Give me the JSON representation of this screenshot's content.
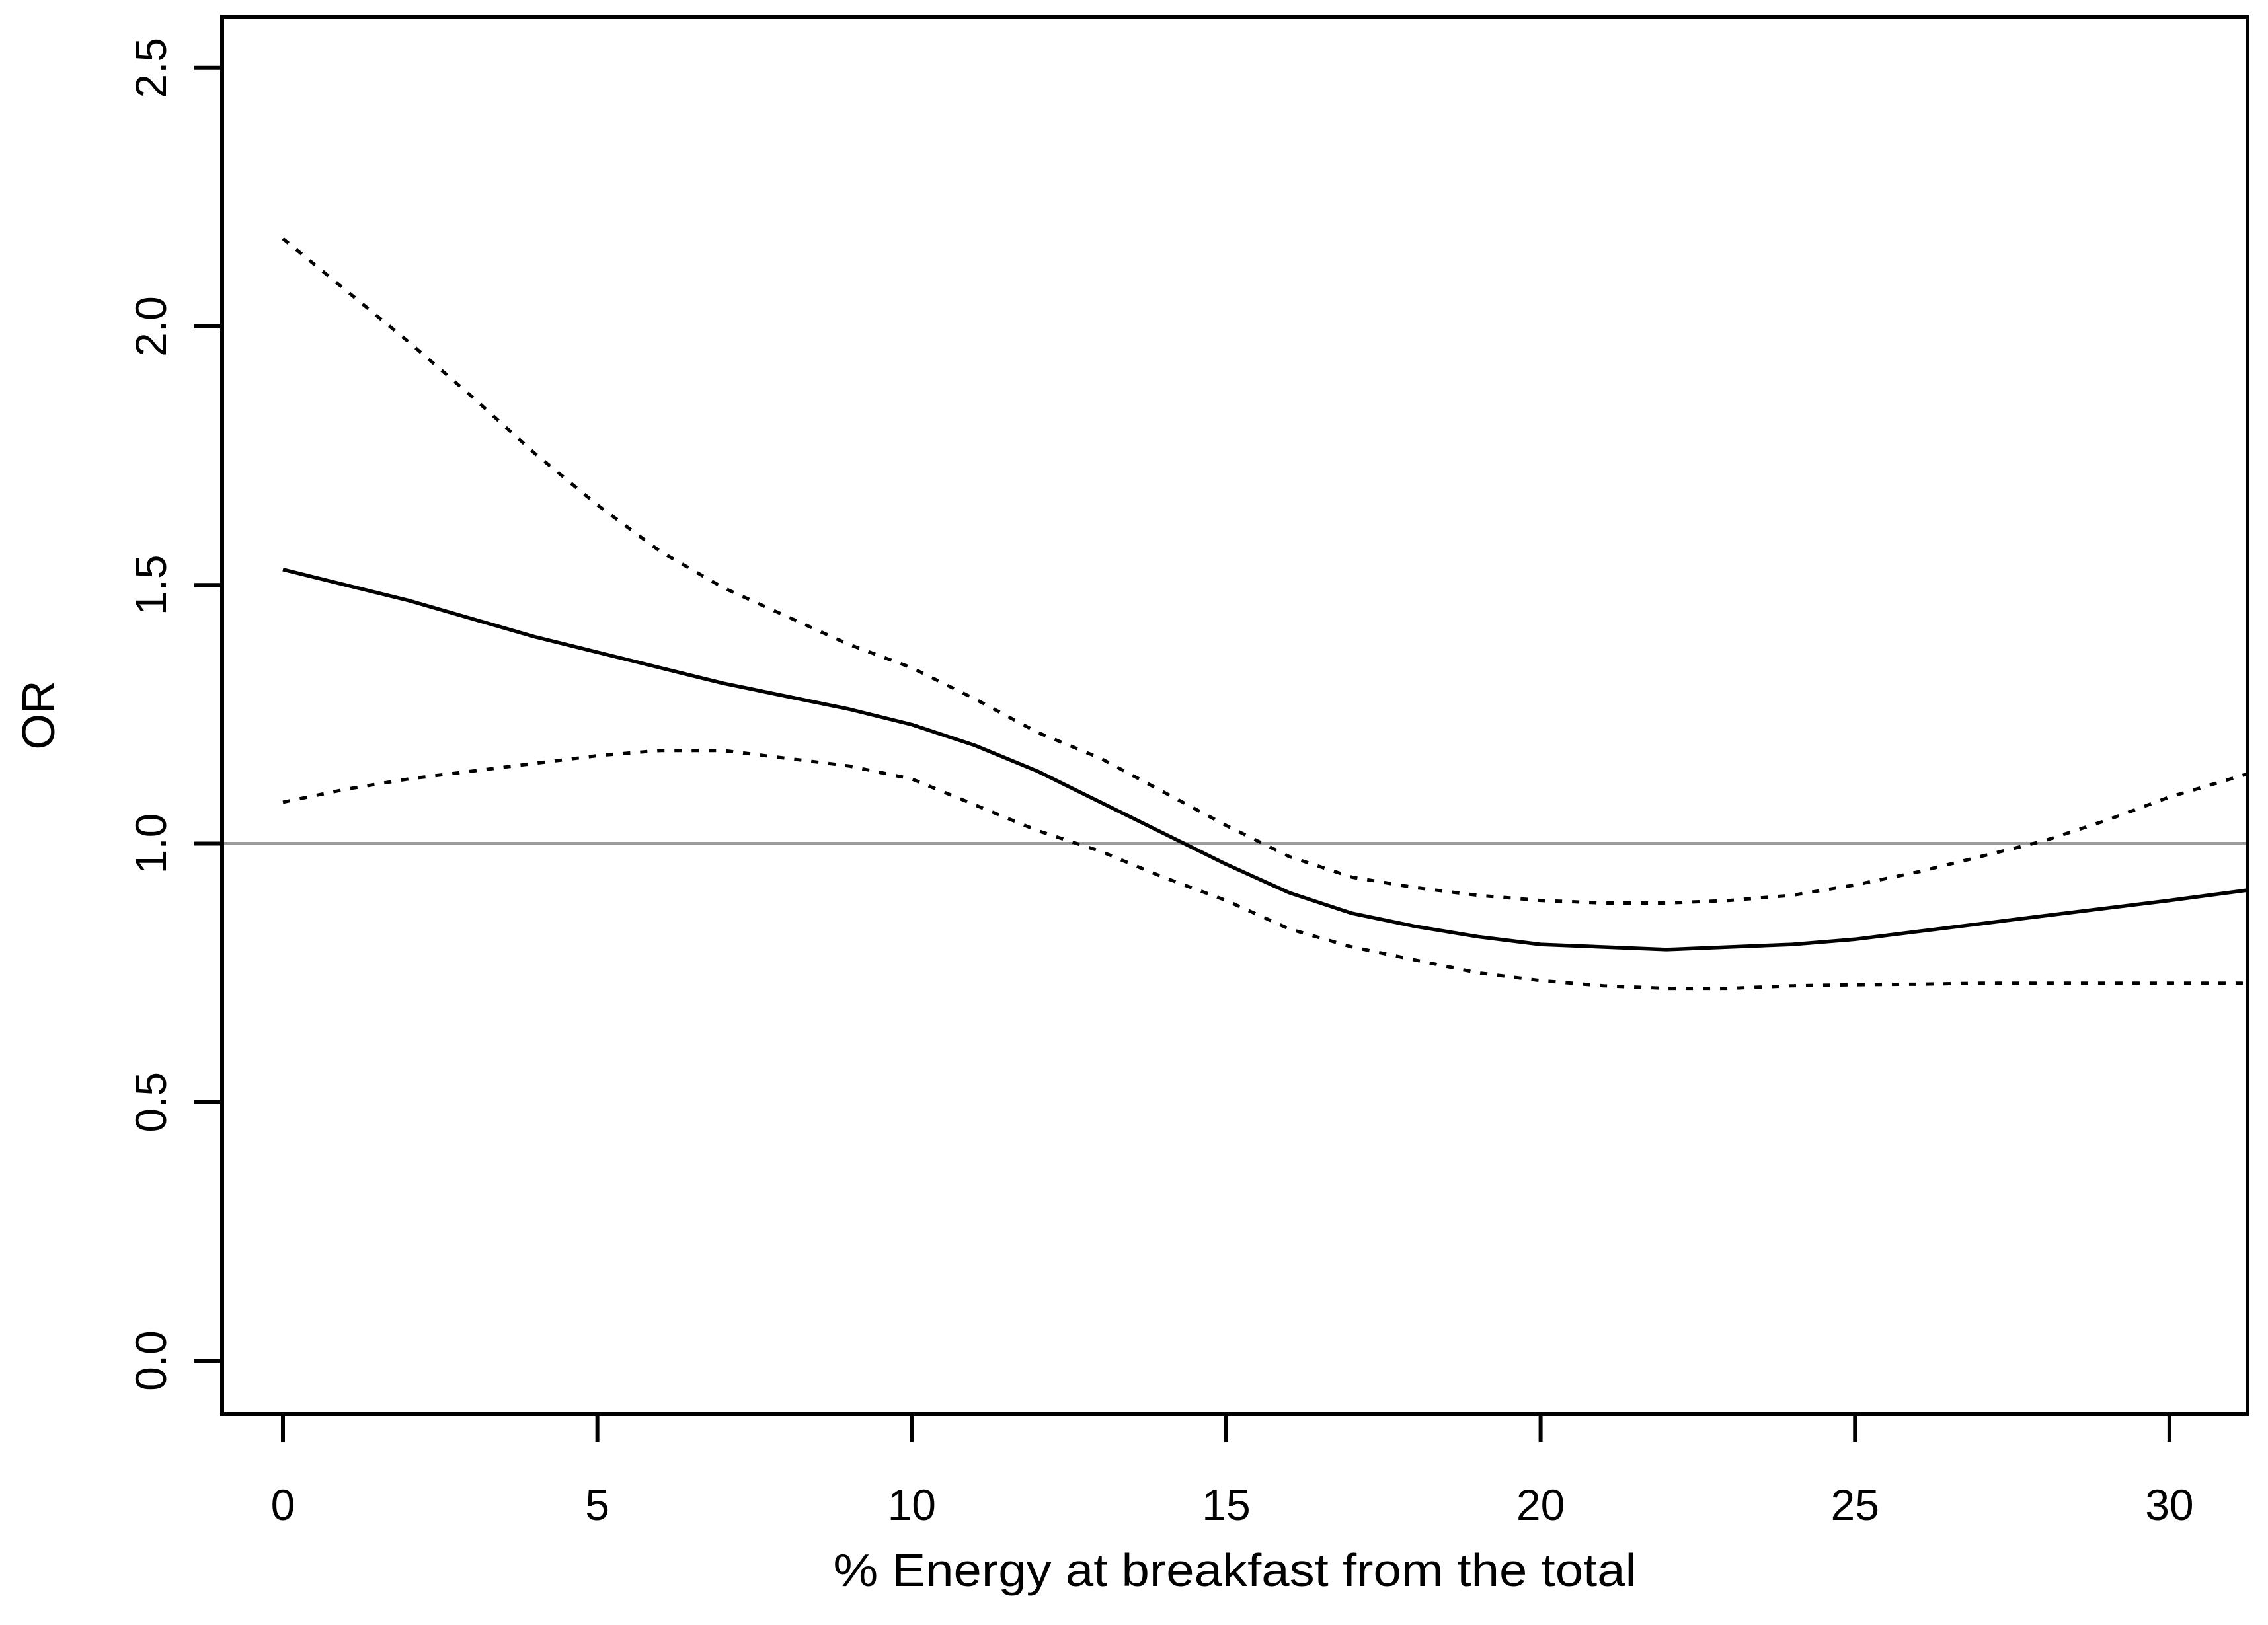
{
  "figure": {
    "background_color": "#ffffff",
    "frame_color": "#000000",
    "curve_color": "#000000",
    "reference_line_color": "#9b9b9b"
  },
  "chart_data": {
    "type": "line",
    "title": "",
    "xlabel": "% Energy at breakfast from the total",
    "ylabel": "OR",
    "xlim": [
      -1.0,
      31.25
    ],
    "ylim": [
      -0.1,
      2.6
    ],
    "grid": false,
    "legend_position": "none",
    "x_ticks": [
      0,
      5,
      10,
      15,
      20,
      25,
      30
    ],
    "y_ticks": [
      0.0,
      0.5,
      1.0,
      1.5,
      2.0,
      2.5
    ],
    "y_tick_labels": [
      "0.0",
      "0.5",
      "1.0",
      "1.5",
      "2.0",
      "2.5"
    ],
    "reference_line_y": 1.0,
    "x": [
      0,
      1,
      2,
      3,
      4,
      5,
      6,
      7,
      8,
      9,
      10,
      11,
      12,
      13,
      14,
      15,
      16,
      17,
      18,
      19,
      20,
      21,
      22,
      23,
      24,
      25,
      26,
      27,
      28,
      29,
      30,
      31.25
    ],
    "series": [
      {
        "name": "estimate",
        "style": "solid",
        "values": [
          1.53,
          1.5,
          1.47,
          1.435,
          1.4,
          1.37,
          1.34,
          1.31,
          1.285,
          1.26,
          1.23,
          1.19,
          1.14,
          1.08,
          1.02,
          0.96,
          0.905,
          0.865,
          0.84,
          0.82,
          0.805,
          0.8,
          0.795,
          0.8,
          0.805,
          0.815,
          0.83,
          0.845,
          0.86,
          0.875,
          0.89,
          0.91
        ]
      },
      {
        "name": "upper-confidence-limit",
        "style": "dotted",
        "values": [
          2.17,
          2.07,
          1.97,
          1.865,
          1.755,
          1.655,
          1.565,
          1.495,
          1.44,
          1.385,
          1.34,
          1.28,
          1.215,
          1.165,
          1.1,
          1.035,
          0.975,
          0.935,
          0.915,
          0.9,
          0.89,
          0.885,
          0.885,
          0.89,
          0.9,
          0.92,
          0.945,
          0.975,
          1.005,
          1.045,
          1.09,
          1.135
        ]
      },
      {
        "name": "lower-confidence-limit",
        "style": "dotted",
        "values": [
          1.08,
          1.105,
          1.125,
          1.14,
          1.155,
          1.17,
          1.18,
          1.18,
          1.165,
          1.15,
          1.125,
          1.075,
          1.025,
          0.985,
          0.935,
          0.89,
          0.835,
          0.8,
          0.775,
          0.75,
          0.735,
          0.725,
          0.72,
          0.72,
          0.725,
          0.727,
          0.728,
          0.73,
          0.73,
          0.73,
          0.73,
          0.73
        ]
      }
    ],
    "annotations": {
      "estimate_at_x0": 1.53,
      "estimate_minimum": 0.795,
      "estimate_minimum_x": 22,
      "estimate_crosses_reference_at_x": 14.3,
      "lower_crosses_reference_at_x": 12.6,
      "upper_crosses_reference_at_x": 15.4
    }
  }
}
